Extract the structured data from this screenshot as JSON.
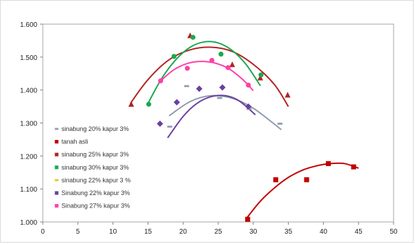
{
  "chart_data": {
    "type": "scatter",
    "title": "",
    "xlabel": "",
    "ylabel": "",
    "xlim": [
      0,
      50
    ],
    "ylim": [
      1.0,
      1.6
    ],
    "x_ticks": [
      "0",
      "5",
      "10",
      "15",
      "20",
      "25",
      "30",
      "35",
      "40",
      "45",
      "50"
    ],
    "y_ticks": [
      "1.000",
      "1.100",
      "1.200",
      "1.300",
      "1.400",
      "1.500",
      "1.600"
    ],
    "grid": false,
    "legend_position": "bottom-left",
    "series": [
      {
        "name": "sinabung 20% kapur 3%",
        "color": "#8e9bb0",
        "marker": "dash",
        "points": [
          [
            18.1,
            1.289
          ],
          [
            20.5,
            1.412
          ],
          [
            25.2,
            1.376
          ],
          [
            29.4,
            1.343
          ],
          [
            33.8,
            1.298
          ]
        ],
        "curve": [
          [
            18.0,
            1.322
          ],
          [
            21,
            1.365
          ],
          [
            24,
            1.383
          ],
          [
            27,
            1.375
          ],
          [
            30,
            1.345
          ],
          [
            34.0,
            1.28
          ]
        ]
      },
      {
        "name": "tanah asli",
        "color": "#c00000",
        "marker": "square",
        "points": [
          [
            29.2,
            1.008
          ],
          [
            33.2,
            1.128
          ],
          [
            37.6,
            1.128
          ],
          [
            40.7,
            1.177
          ],
          [
            44.3,
            1.167
          ]
        ],
        "curve": [
          [
            29.0,
            1.01
          ],
          [
            31,
            1.063
          ],
          [
            33,
            1.103
          ],
          [
            35,
            1.135
          ],
          [
            37,
            1.157
          ],
          [
            39,
            1.17
          ],
          [
            41,
            1.177
          ],
          [
            43,
            1.177
          ],
          [
            45.0,
            1.163
          ]
        ]
      },
      {
        "name": "sinabung 25% kapur 3%",
        "color": "#b22222",
        "marker": "triangle",
        "points": [
          [
            12.6,
            1.357
          ],
          [
            21.0,
            1.565
          ],
          [
            27.0,
            1.477
          ],
          [
            31.0,
            1.437
          ],
          [
            34.9,
            1.385
          ]
        ],
        "curve": [
          [
            12.5,
            1.36
          ],
          [
            15,
            1.432
          ],
          [
            18,
            1.492
          ],
          [
            21,
            1.522
          ],
          [
            24,
            1.53
          ],
          [
            27,
            1.517
          ],
          [
            30,
            1.478
          ],
          [
            33,
            1.417
          ],
          [
            35.0,
            1.35
          ]
        ]
      },
      {
        "name": "sinabung 30% kapur 3%",
        "color": "#1aa84f",
        "marker": "circle",
        "points": [
          [
            15.1,
            1.357
          ],
          [
            18.7,
            1.502
          ],
          [
            21.4,
            1.56
          ],
          [
            25.4,
            1.509
          ],
          [
            31.1,
            1.446
          ]
        ],
        "curve": [
          [
            15.0,
            1.36
          ],
          [
            17,
            1.437
          ],
          [
            19,
            1.493
          ],
          [
            21,
            1.53
          ],
          [
            23,
            1.546
          ],
          [
            25,
            1.543
          ],
          [
            27,
            1.52
          ],
          [
            29,
            1.477
          ],
          [
            31.0,
            1.413
          ]
        ]
      },
      {
        "name": "sinabung 22% kapur 3 %",
        "color": "#e6c619",
        "marker": "dash",
        "points": [],
        "curve": []
      },
      {
        "name": "Sinabung 22% kapur 3%",
        "color": "#6a3fa0",
        "marker": "diamond",
        "points": [
          [
            16.7,
            1.298
          ],
          [
            19.1,
            1.363
          ],
          [
            22.3,
            1.404
          ],
          [
            25.6,
            1.408
          ],
          [
            29.3,
            1.35
          ]
        ],
        "curve": [
          [
            17.8,
            1.255
          ],
          [
            20,
            1.32
          ],
          [
            22,
            1.36
          ],
          [
            24,
            1.38
          ],
          [
            26,
            1.383
          ],
          [
            28,
            1.367
          ],
          [
            30.3,
            1.325
          ]
        ]
      },
      {
        "name": "Sinabung 27% kapur 3%",
        "color": "#ff3fa8",
        "marker": "circle",
        "points": [
          [
            16.8,
            1.428
          ],
          [
            20.6,
            1.466
          ],
          [
            24.1,
            1.49
          ],
          [
            26.4,
            1.468
          ],
          [
            29.3,
            1.415
          ]
        ],
        "curve": [
          [
            16.5,
            1.422
          ],
          [
            18.5,
            1.459
          ],
          [
            20.5,
            1.48
          ],
          [
            22.5,
            1.487
          ],
          [
            24.5,
            1.482
          ],
          [
            26.5,
            1.465
          ],
          [
            28.5,
            1.432
          ],
          [
            30.0,
            1.398
          ]
        ]
      }
    ]
  }
}
